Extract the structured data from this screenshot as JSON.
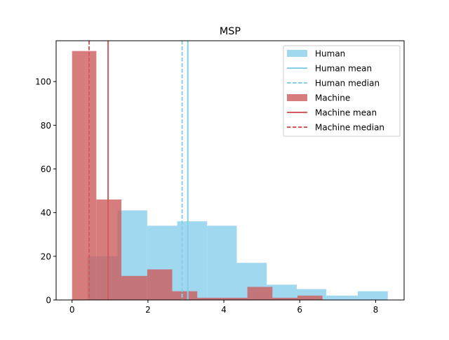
{
  "chart_data": {
    "type": "bar",
    "title": "MSP",
    "xlabel": "",
    "ylabel": "",
    "xlim": [
      -0.42,
      8.75
    ],
    "ylim": [
      0,
      118.7
    ],
    "xticks": [
      0,
      2,
      4,
      6,
      8
    ],
    "yticks": [
      0,
      20,
      40,
      60,
      80,
      100
    ],
    "grid": false,
    "legend_position": "top-right",
    "series": [
      {
        "name": "Human",
        "kind": "histogram",
        "color": "#87ceeb",
        "opacity": 0.8,
        "bin_edges": [
          0.4,
          1.2,
          1.98,
          2.77,
          3.56,
          4.34,
          5.13,
          5.92,
          6.7,
          7.53,
          8.32
        ],
        "counts": [
          20,
          41,
          34,
          36,
          34,
          17,
          7,
          5,
          2,
          4
        ],
        "mean": 3.05,
        "median": 2.9
      },
      {
        "name": "Machine",
        "kind": "histogram",
        "color": "#cd5c5c",
        "opacity": 0.8,
        "bin_edges": [
          0.0,
          0.64,
          1.3,
          1.98,
          2.64,
          3.3,
          3.96,
          4.62,
          5.28,
          5.94,
          6.6
        ],
        "counts": [
          114,
          46,
          11,
          14,
          4,
          1,
          1,
          6,
          1,
          2
        ],
        "mean": 0.95,
        "median": 0.45
      }
    ],
    "legend": [
      {
        "label": "Human",
        "style": "patch",
        "color": "#87ceeb"
      },
      {
        "label": "Human mean",
        "style": "solid",
        "color": "#87ceeb"
      },
      {
        "label": "Human median",
        "style": "dashed",
        "color": "#87ceeb"
      },
      {
        "label": "Machine",
        "style": "patch",
        "color": "#cd5c5c"
      },
      {
        "label": "Machine mean",
        "style": "solid",
        "color": "#cd5c5c"
      },
      {
        "label": "Machine median",
        "style": "dashed",
        "color": "#cd5c5c"
      }
    ]
  }
}
